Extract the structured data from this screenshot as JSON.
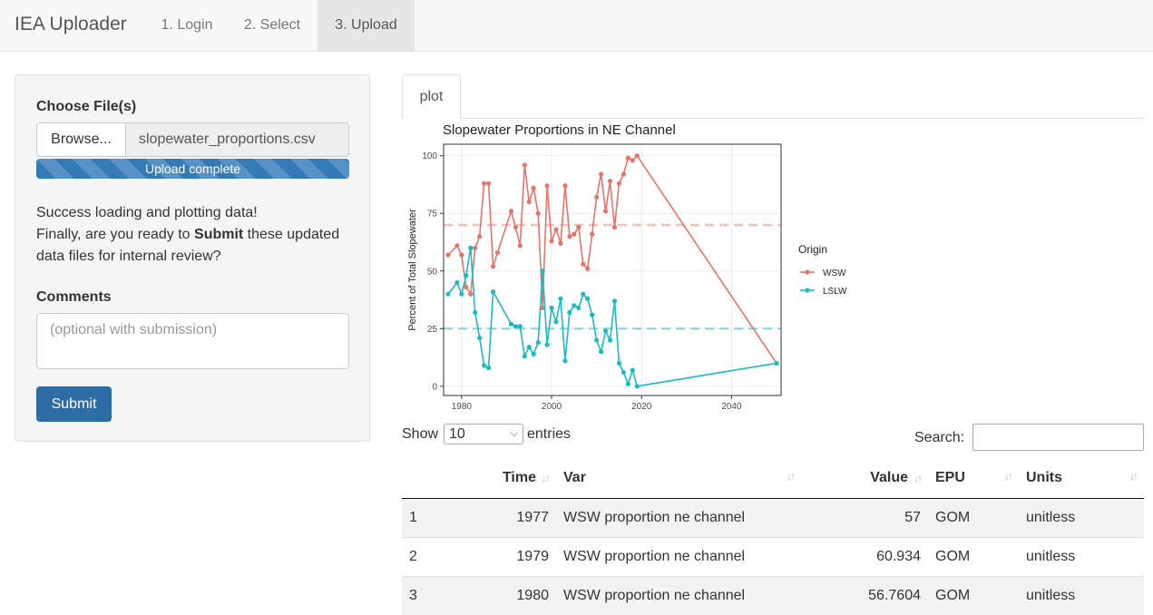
{
  "app": {
    "brand": "IEA Uploader",
    "nav": [
      {
        "label": "1. Login"
      },
      {
        "label": "2. Select"
      },
      {
        "label": "3. Upload"
      }
    ]
  },
  "upload": {
    "choose_label": "Choose File(s)",
    "browse_label": "Browse...",
    "file_name": "slopewater_proportions.csv",
    "progress_text": "Upload complete",
    "progress": 1.0,
    "success_line": "Success loading and plotting data!",
    "prompt_before": "Finally, are you ready to ",
    "prompt_bold": "Submit",
    "prompt_after": " these updated data files for internal review?",
    "comments_label": "Comments",
    "comments_placeholder": "(optional with submission)",
    "submit_label": "Submit"
  },
  "tabs": [
    {
      "label": "plot"
    }
  ],
  "chart_data": {
    "type": "line",
    "title": "Slopewater Proportions in NE Channel",
    "ylabel": "Percent of Total Slopewater",
    "xlabel": "",
    "xlim": [
      1976,
      2051
    ],
    "ylim": [
      -4,
      105
    ],
    "xticks": [
      1980,
      2000,
      2020,
      2040
    ],
    "yticks": [
      0,
      25,
      50,
      75,
      100
    ],
    "grid": true,
    "legend": {
      "title": "Origin",
      "placement": "right"
    },
    "series": [
      {
        "name": "WSW",
        "color": "#e8736b",
        "mean": 70,
        "points": [
          [
            1977,
            57
          ],
          [
            1979,
            61
          ],
          [
            1980,
            57
          ],
          [
            1981,
            43
          ],
          [
            1982,
            40
          ],
          [
            1983,
            60
          ],
          [
            1984,
            65
          ],
          [
            1985,
            88
          ],
          [
            1986,
            88
          ],
          [
            1987,
            52
          ],
          [
            1988,
            58
          ],
          [
            1991,
            76
          ],
          [
            1992,
            69
          ],
          [
            1993,
            61
          ],
          [
            1994,
            96
          ],
          [
            1995,
            80
          ],
          [
            1996,
            86
          ],
          [
            1997,
            75
          ],
          [
            1998,
            34
          ],
          [
            1999,
            87
          ],
          [
            2000,
            63
          ],
          [
            2001,
            68
          ],
          [
            2002,
            62
          ],
          [
            2003,
            87
          ],
          [
            2004,
            65
          ],
          [
            2005,
            66
          ],
          [
            2006,
            69
          ],
          [
            2007,
            53
          ],
          [
            2008,
            51
          ],
          [
            2009,
            66
          ],
          [
            2010,
            82
          ],
          [
            2011,
            92
          ],
          [
            2012,
            76
          ],
          [
            2013,
            89
          ],
          [
            2014,
            69
          ],
          [
            2015,
            88
          ],
          [
            2016,
            92
          ],
          [
            2017,
            99
          ],
          [
            2018,
            98
          ],
          [
            2019,
            100
          ],
          [
            2050,
            10
          ]
        ]
      },
      {
        "name": "LSLW",
        "color": "#19bcc3",
        "mean": 25,
        "points": [
          [
            1977,
            40
          ],
          [
            1979,
            45
          ],
          [
            1980,
            40
          ],
          [
            1981,
            48
          ],
          [
            1982,
            60
          ],
          [
            1983,
            32
          ],
          [
            1984,
            21
          ],
          [
            1985,
            9
          ],
          [
            1986,
            8
          ],
          [
            1987,
            41
          ],
          [
            1991,
            27
          ],
          [
            1992,
            26
          ],
          [
            1993,
            26
          ],
          [
            1994,
            13
          ],
          [
            1995,
            17
          ],
          [
            1996,
            14
          ],
          [
            1997,
            19
          ],
          [
            1998,
            50
          ],
          [
            1999,
            18
          ],
          [
            2000,
            34
          ],
          [
            2001,
            28
          ],
          [
            2002,
            38
          ],
          [
            2003,
            11
          ],
          [
            2004,
            32
          ],
          [
            2005,
            35
          ],
          [
            2006,
            34
          ],
          [
            2007,
            40
          ],
          [
            2008,
            38
          ],
          [
            2009,
            31
          ],
          [
            2010,
            20
          ],
          [
            2011,
            15
          ],
          [
            2012,
            24
          ],
          [
            2013,
            20
          ],
          [
            2014,
            37
          ],
          [
            2015,
            10
          ],
          [
            2016,
            6
          ],
          [
            2017,
            1
          ],
          [
            2018,
            7
          ],
          [
            2019,
            0
          ],
          [
            2050,
            10
          ]
        ]
      }
    ]
  },
  "table": {
    "show_label": "Show",
    "entries_value": "10",
    "entries_label": "entries",
    "search_label": "Search:",
    "columns": [
      "",
      "Time",
      "Var",
      "Value",
      "EPU",
      "Units"
    ],
    "rows": [
      [
        "1",
        "1977",
        "WSW proportion ne channel",
        "57",
        "GOM",
        "unitless"
      ],
      [
        "2",
        "1979",
        "WSW proportion ne channel",
        "60.934",
        "GOM",
        "unitless"
      ],
      [
        "3",
        "1980",
        "WSW proportion ne channel",
        "56.7604",
        "GOM",
        "unitless"
      ]
    ]
  }
}
